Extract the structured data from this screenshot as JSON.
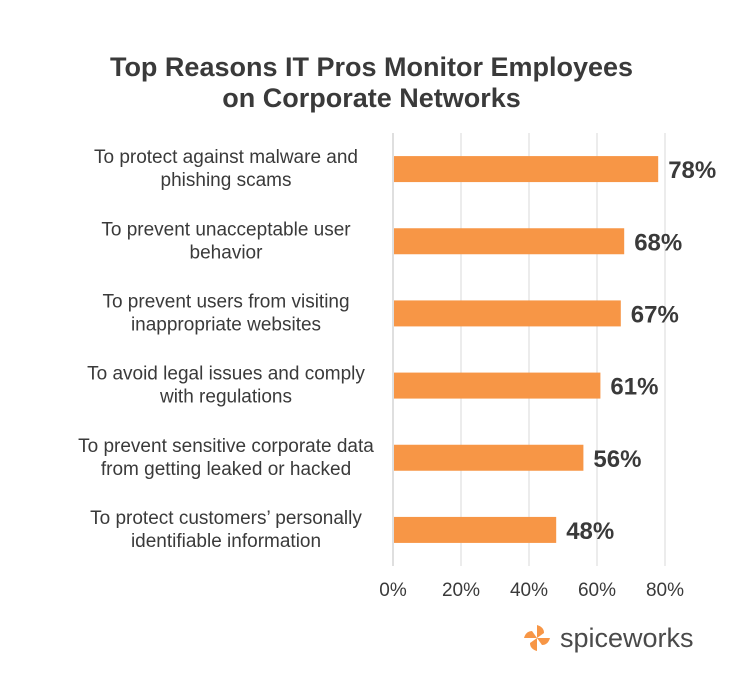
{
  "chart_data": {
    "type": "bar",
    "orientation": "horizontal",
    "title": "Top Reasons IT Pros Monitor Employees on Corporate Networks",
    "title_lines": [
      "Top Reasons IT Pros Monitor Employees",
      "on Corporate Networks"
    ],
    "categories": [
      [
        "To protect against malware and",
        "phishing scams"
      ],
      [
        "To prevent unacceptable user",
        "behavior"
      ],
      [
        "To prevent users from visiting",
        "inappropriate websites"
      ],
      [
        "To avoid legal issues and comply",
        "with regulations"
      ],
      [
        "To prevent sensitive corporate data",
        "from getting leaked or hacked"
      ],
      [
        "To protect customers’ personally",
        "identifiable information"
      ]
    ],
    "values": [
      78,
      68,
      67,
      61,
      56,
      48
    ],
    "value_labels": [
      "78%",
      "68%",
      "67%",
      "61%",
      "56%",
      "48%"
    ],
    "xticks": [
      "0%",
      "20%",
      "40%",
      "60%",
      "80%"
    ],
    "xtick_values": [
      0,
      20,
      40,
      60,
      80
    ],
    "xlim": [
      0,
      80
    ],
    "grid": true,
    "bar_color": "#f79646",
    "label_color": "#3a3a3a",
    "grid_color": "#d9d9d9"
  },
  "branding": {
    "logo_text": "spiceworks",
    "logo_color": "#f79646"
  }
}
